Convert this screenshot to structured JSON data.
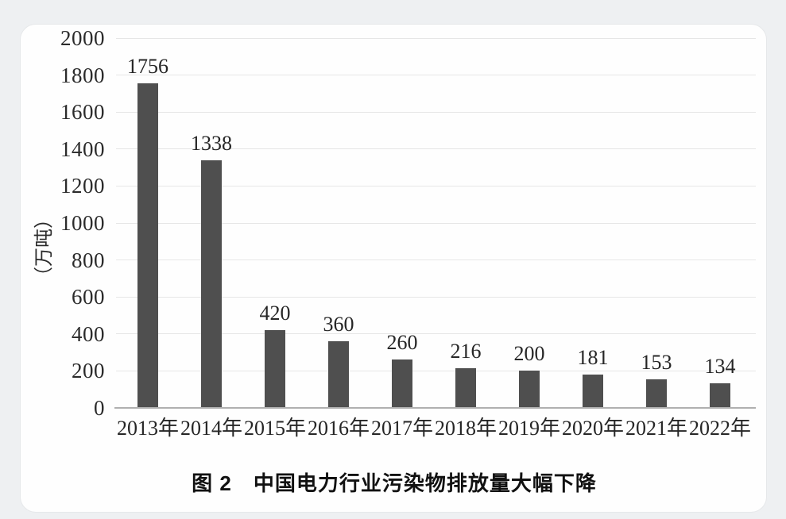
{
  "caption": "图 2　中国电力行业污染物排放量大幅下降",
  "chart_data": {
    "type": "bar",
    "title": "图 2 中国电力行业污染物排放量大幅下降",
    "categories": [
      "2013年",
      "2014年",
      "2015年",
      "2016年",
      "2017年",
      "2018年",
      "2019年",
      "2020年",
      "2021年",
      "2022年"
    ],
    "values": [
      1756,
      1338,
      420,
      360,
      260,
      216,
      200,
      181,
      153,
      134
    ],
    "data_labels": [
      "1756",
      "1338",
      "420",
      "360",
      "260",
      "216",
      "200",
      "181",
      "153",
      "134"
    ],
    "xlabel": "",
    "ylabel": "（万吨）",
    "ylim": [
      0,
      2000
    ],
    "yticks": [
      0,
      200,
      400,
      600,
      800,
      1000,
      1200,
      1400,
      1600,
      1800,
      2000
    ],
    "grid": "horizontal",
    "legend": "none",
    "bar_color": "#4f4f4f",
    "gridline_color": "#e6e6e6",
    "axis_line_color": "#b0b0b0",
    "text_color": "#262626",
    "background_color": "#fefefe"
  }
}
